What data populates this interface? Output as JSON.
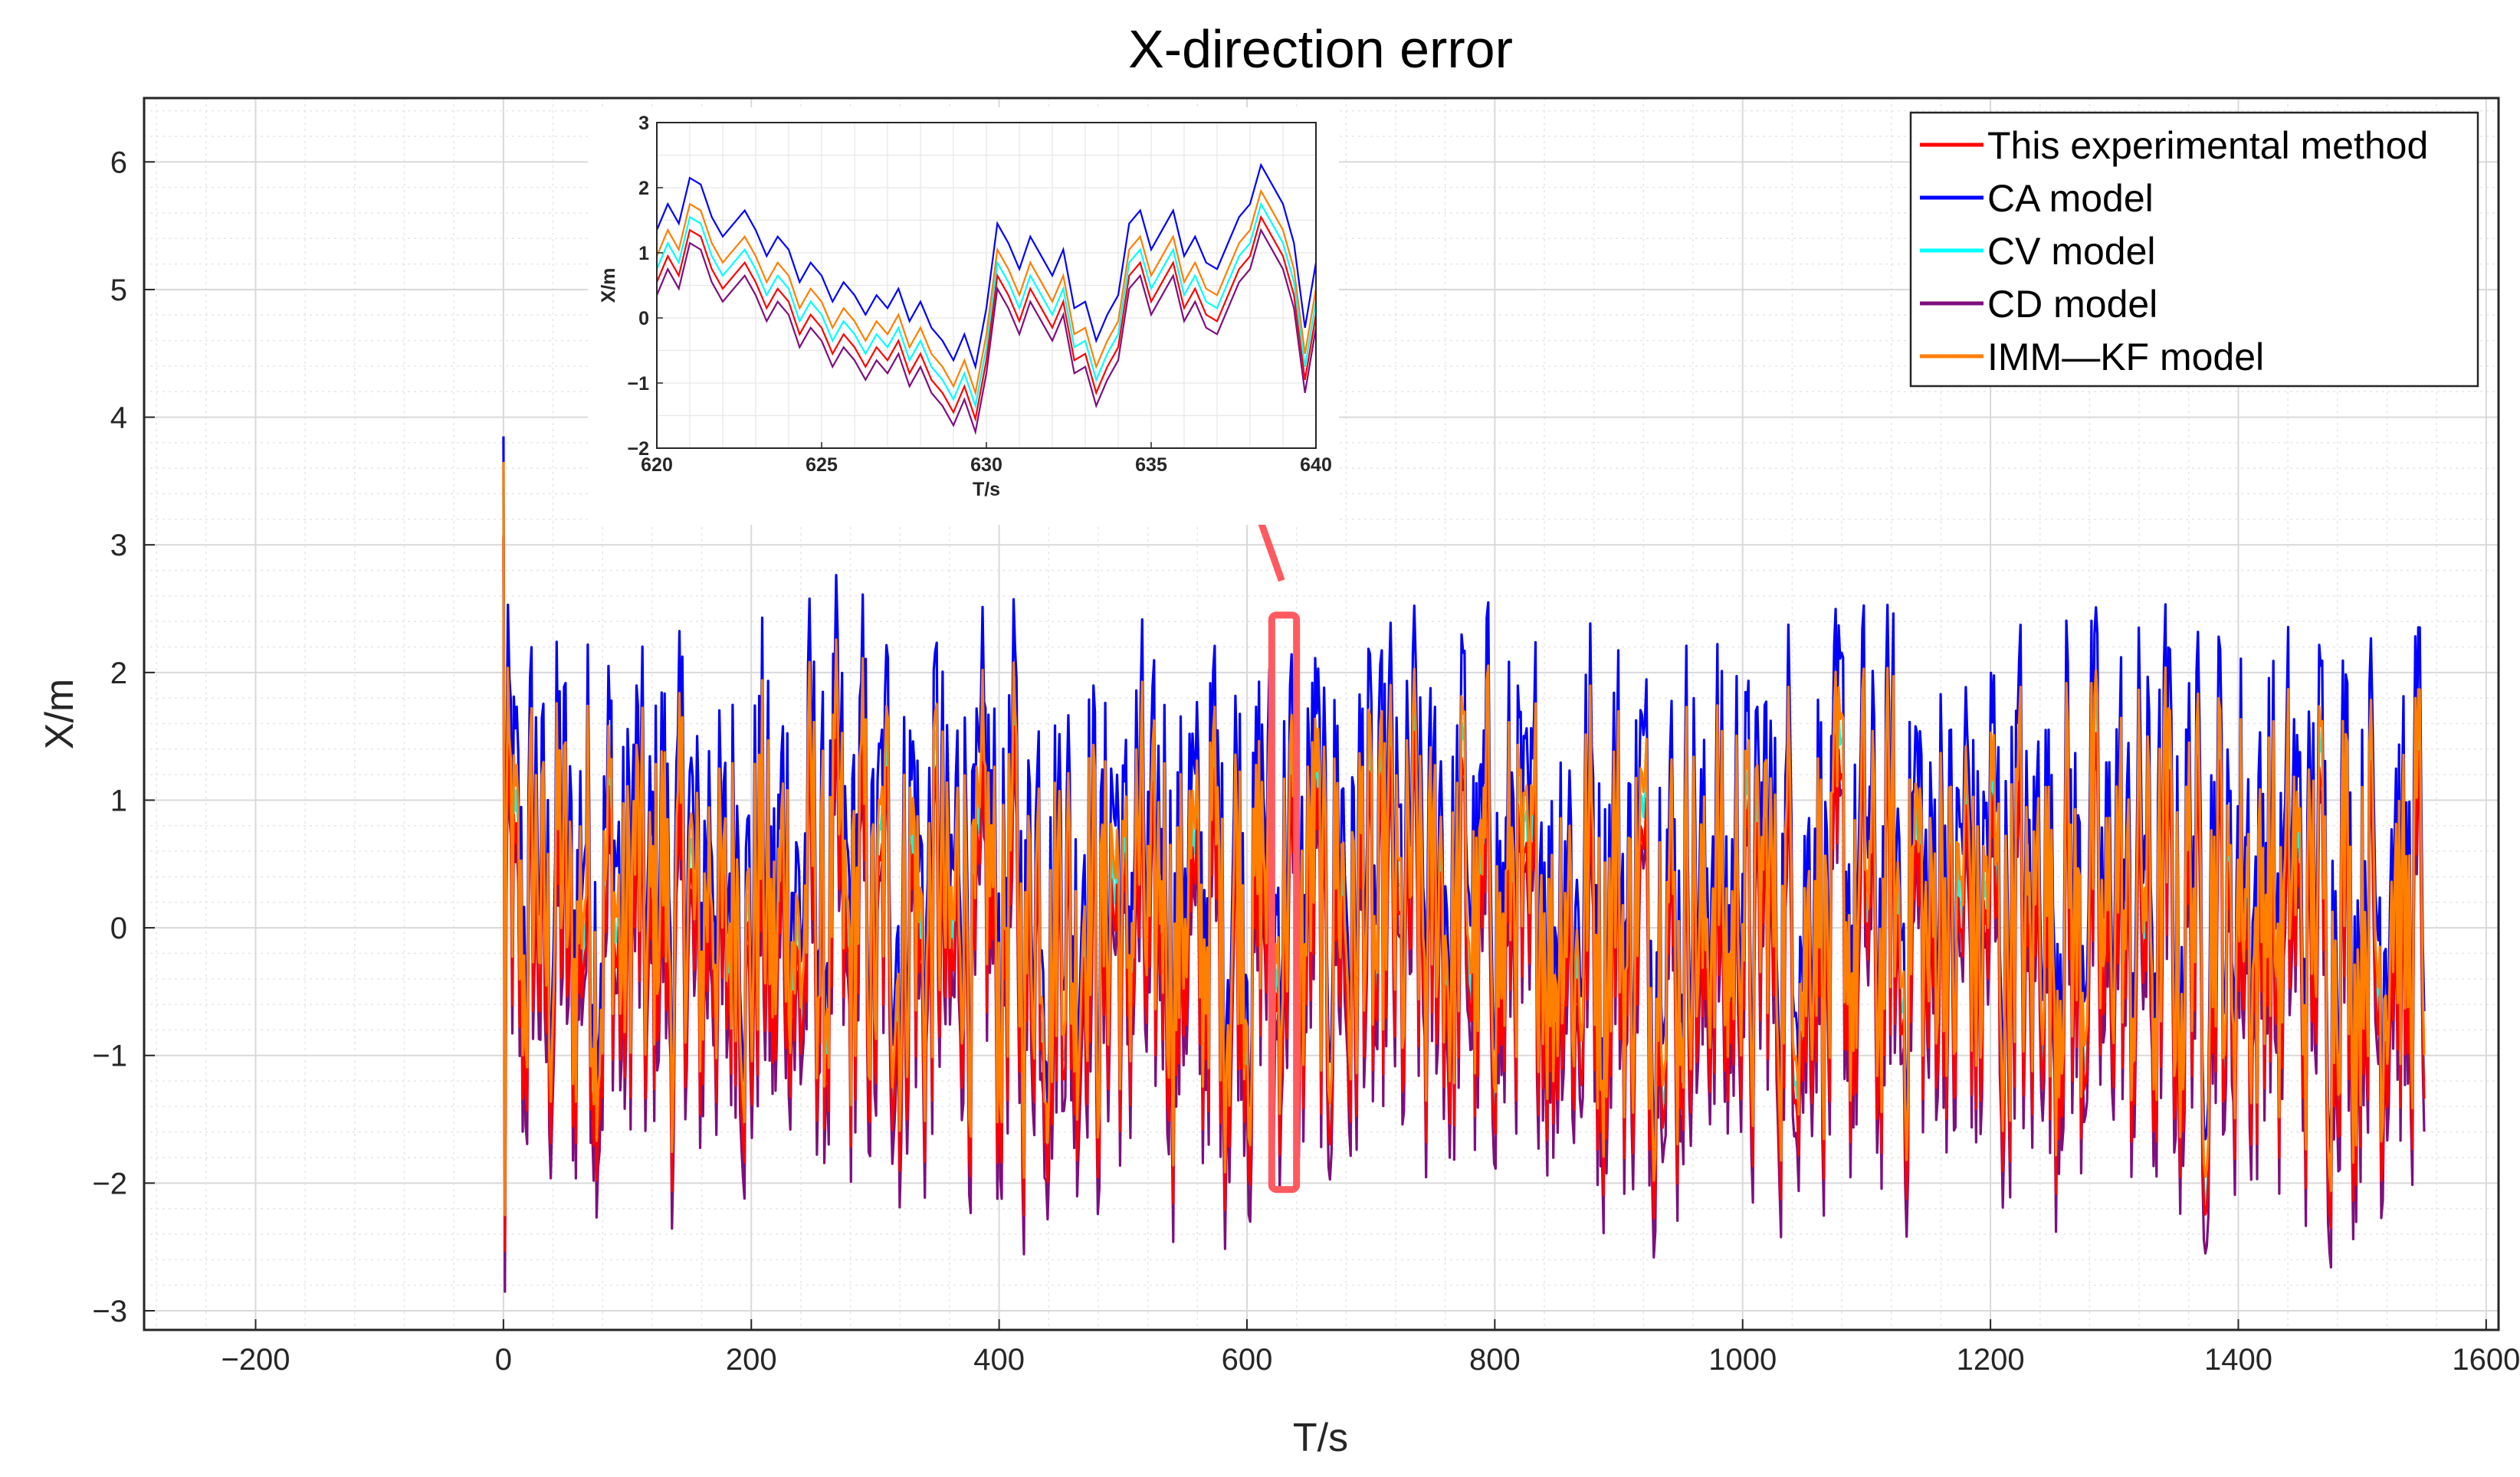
{
  "chart_data": {
    "type": "line",
    "title": "X-direction error",
    "xlabel": "T/s",
    "ylabel": "X/m",
    "xlim": [
      -290,
      1610
    ],
    "ylim": [
      -3.15,
      6.5
    ],
    "xticks": [
      -200,
      0,
      200,
      400,
      600,
      800,
      1000,
      1200,
      1400,
      1600
    ],
    "yticks": [
      -3,
      -2,
      -1,
      0,
      1,
      2,
      3,
      4,
      5,
      6
    ],
    "xtick_labels": [
      "−200",
      "0",
      "200",
      "400",
      "600",
      "800",
      "1000",
      "1200",
      "1400",
      "1600"
    ],
    "ytick_labels": [
      "−3",
      "−2",
      "−1",
      "0",
      "1",
      "2",
      "3",
      "4",
      "5",
      "6"
    ],
    "grid": true,
    "legend_position": "top-right",
    "data_range_x": [
      0,
      1550
    ],
    "series": [
      {
        "name": "This experimental method",
        "color": "#ff0000",
        "offset": -0.25,
        "scale": 0.95
      },
      {
        "name": "CA model",
        "color": "#0000ff",
        "offset": 0.55,
        "scale": 1.05
      },
      {
        "name": "CV model",
        "color": "#00ffff",
        "offset": -0.05,
        "scale": 1.0
      },
      {
        "name": "CD model",
        "color": "#7e0f7e",
        "offset": -0.45,
        "scale": 1.0
      },
      {
        "name": "IMM—KF model",
        "color": "#ff7f00",
        "offset": 0.15,
        "scale": 1.0
      }
    ],
    "annotations": [
      {
        "type": "highlight-box",
        "x_range": [
          620,
          640
        ],
        "y_range": [
          -2.05,
          2.45
        ],
        "color": "#ff5a5f"
      },
      {
        "type": "arrow",
        "from": [
          630,
          2.6
        ],
        "to_inset": true,
        "color": "#ff5a5f"
      }
    ],
    "inset": {
      "xlim": [
        620,
        640
      ],
      "ylim": [
        -2,
        3
      ],
      "xticks": [
        620,
        625,
        630,
        635,
        640
      ],
      "yticks": [
        -2,
        -1,
        0,
        1,
        2,
        3
      ],
      "xtick_labels": [
        "620",
        "625",
        "630",
        "635",
        "640"
      ],
      "ytick_labels": [
        "−2",
        "−1",
        "0",
        "1",
        "2",
        "3"
      ],
      "xlabel": "T/s",
      "ylabel": "X/m",
      "base_values": [
        0.8,
        1.2,
        0.9,
        1.6,
        1.5,
        1.0,
        0.7,
        0.9,
        1.1,
        0.8,
        0.4,
        0.7,
        0.5,
        0.0,
        0.3,
        0.1,
        -0.3,
        0.0,
        -0.2,
        -0.5,
        -0.2,
        -0.4,
        -0.1,
        -0.6,
        -0.3,
        -0.7,
        -0.9,
        -1.2,
        -0.8,
        -1.3,
        -0.4,
        0.9,
        0.6,
        0.2,
        0.7,
        0.4,
        0.1,
        0.5,
        -0.4,
        -0.3,
        -0.9,
        -0.5,
        -0.2,
        0.9,
        1.1,
        0.5,
        0.8,
        1.1,
        0.4,
        0.7,
        0.3,
        0.2,
        0.6,
        1.0,
        1.2,
        1.8,
        1.5,
        1.2,
        0.6,
        -0.7,
        0.3
      ]
    }
  }
}
